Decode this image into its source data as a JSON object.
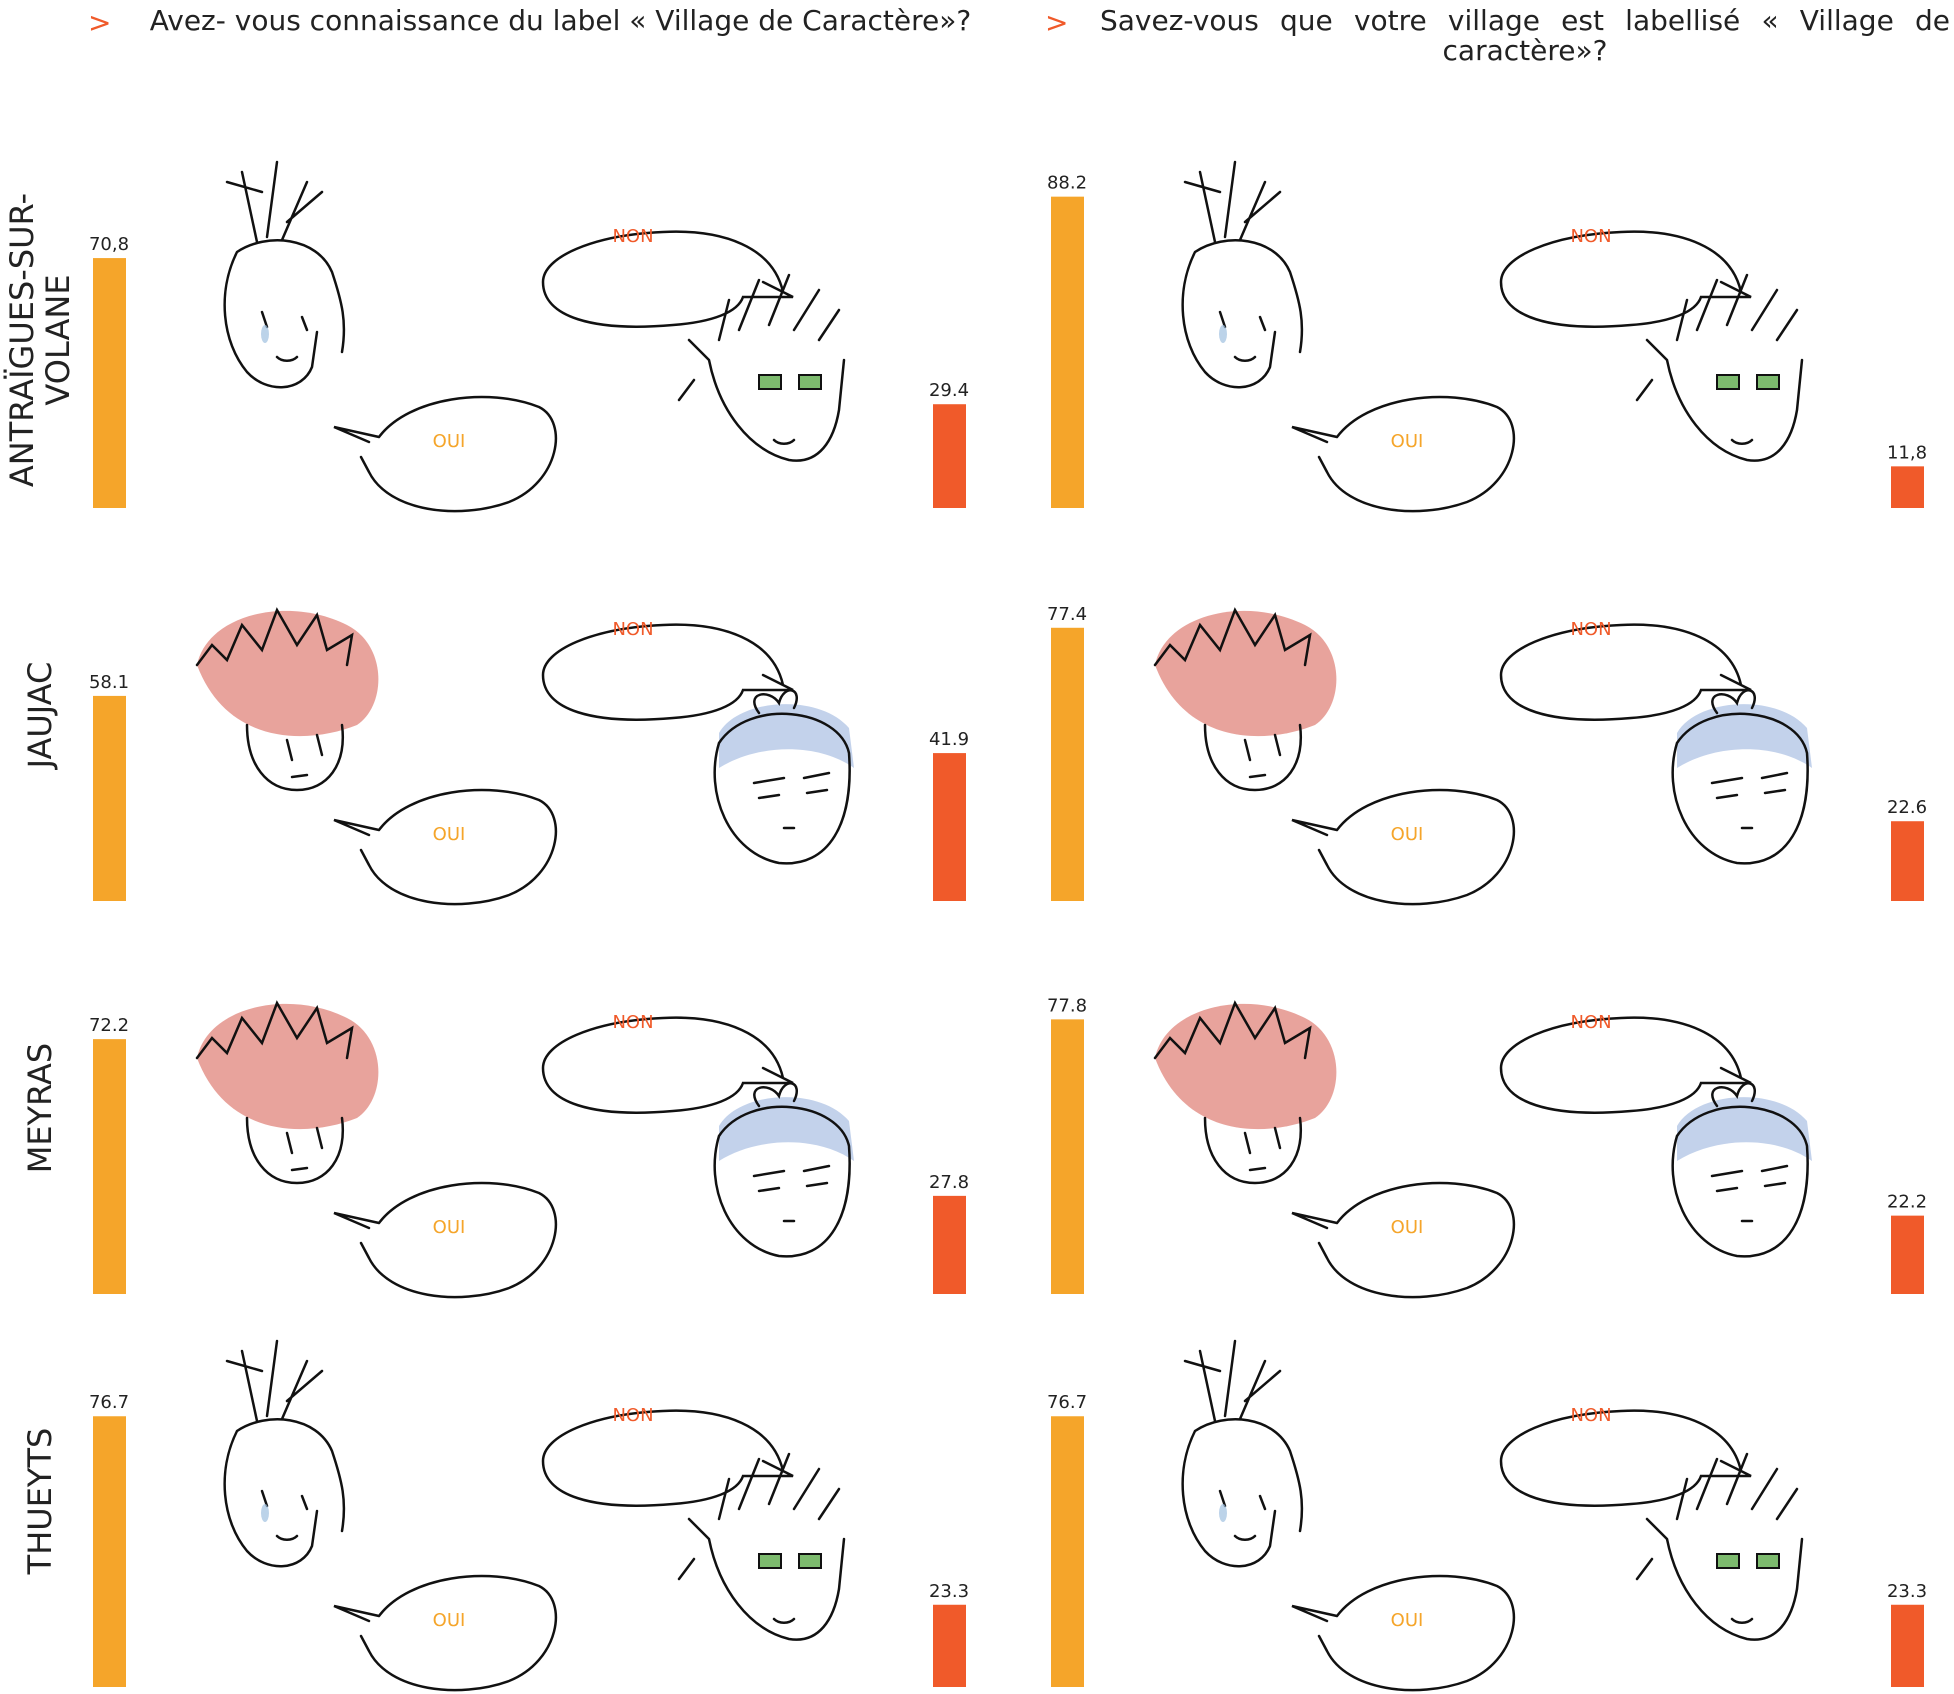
{
  "bullet": ">",
  "questions": [
    "Avez- vous connaissance du label « Village de Caractère»?",
    "Savez-vous que votre village est labellisé « Village de caractère»?"
  ],
  "villages": [
    "ANTRAÏGUES-SUR-VOLANE",
    "JAUJAC",
    "MEYRAS",
    "THUEYTS"
  ],
  "chart_data": [
    {
      "type": "bar",
      "categories": [
        "OUI",
        "NON"
      ],
      "values": [
        70.8,
        29.4
      ],
      "value_labels": [
        "70,8",
        "29.4"
      ],
      "colors": [
        "#f5a52a",
        "#f05a2a"
      ]
    },
    {
      "type": "bar",
      "categories": [
        "OUI",
        "NON"
      ],
      "values": [
        88.2,
        11.8
      ],
      "value_labels": [
        "88.2",
        "11,8"
      ],
      "colors": [
        "#f5a52a",
        "#f05a2a"
      ]
    },
    {
      "type": "bar",
      "categories": [
        "OUI",
        "NON"
      ],
      "values": [
        58.1,
        41.9
      ],
      "colors": [
        "#f5a52a",
        "#f05a2a"
      ]
    },
    {
      "type": "bar",
      "categories": [
        "OUI",
        "NON"
      ],
      "values": [
        77.4,
        22.6
      ],
      "colors": [
        "#f5a52a",
        "#f05a2a"
      ]
    },
    {
      "type": "bar",
      "categories": [
        "OUI",
        "NON"
      ],
      "values": [
        72.2,
        27.8
      ],
      "colors": [
        "#f5a52a",
        "#f05a2a"
      ]
    },
    {
      "type": "bar",
      "categories": [
        "OUI",
        "NON"
      ],
      "values": [
        77.8,
        22.2
      ],
      "colors": [
        "#f5a52a",
        "#f05a2a"
      ]
    },
    {
      "type": "bar",
      "categories": [
        "OUI",
        "NON"
      ],
      "values": [
        76.7,
        23.3
      ],
      "colors": [
        "#f5a52a",
        "#f05a2a"
      ]
    },
    {
      "type": "bar",
      "categories": [
        "OUI",
        "NON"
      ],
      "values": [
        76.7,
        23.3
      ],
      "colors": [
        "#f5a52a",
        "#f05a2a"
      ]
    }
  ]
}
